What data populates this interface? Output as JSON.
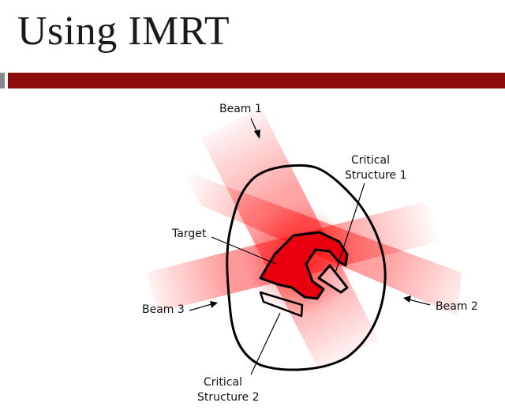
{
  "slide": {
    "title": "Using IMRT"
  },
  "diagram": {
    "labels": {
      "beam1": "Beam 1",
      "beam2": "Beam 2",
      "beam3": "Beam 3",
      "target": "Target",
      "critical1_line1": "Critical",
      "critical1_line2": "Structure 1",
      "critical2_line1": "Critical",
      "critical2_line2": "Structure 2"
    },
    "colors": {
      "beam": "#ff0000",
      "target_fill": "#e8000e",
      "outline": "#000000",
      "title_bar": "#8b0a0a"
    }
  }
}
